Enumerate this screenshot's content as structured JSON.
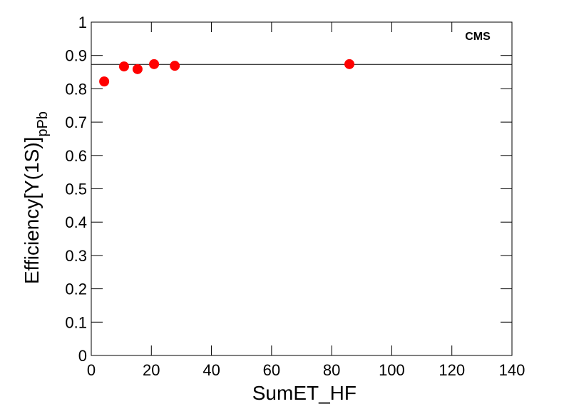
{
  "chart_data": {
    "type": "scatter",
    "xlabel": "SumET_HF",
    "ylabel": "Efficiency[Υ(1S)]",
    "ylabel_sub": "pPb",
    "annotation": "CMS",
    "series": [
      {
        "color": "#ff0000",
        "x": [
          4.3,
          10.9,
          15.4,
          20.9,
          27.8,
          85.9
        ],
        "values": [
          0.822,
          0.867,
          0.859,
          0.874,
          0.869,
          0.874
        ]
      }
    ],
    "reference_line": 0.873,
    "xlim": [
      0,
      140
    ],
    "xticks": [
      0,
      20,
      40,
      60,
      80,
      100,
      120,
      140
    ],
    "ylim": [
      0,
      1
    ],
    "yticks": [
      0,
      0.1,
      0.2,
      0.3,
      0.4,
      0.5,
      0.6,
      0.7,
      0.8,
      0.9,
      1
    ]
  }
}
